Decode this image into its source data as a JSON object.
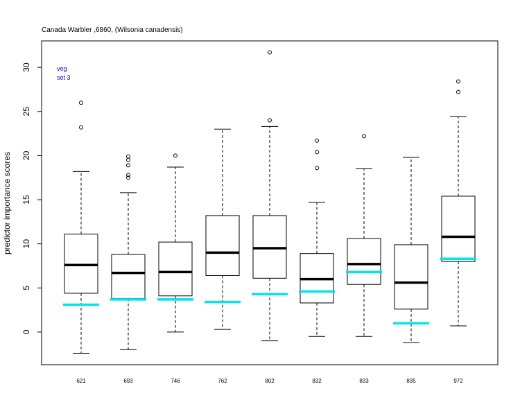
{
  "chart_data": {
    "type": "box",
    "title": "Canada Warbler ,6860, (Wilsonia canadensis)",
    "ylabel": "predictor importance scores",
    "xlabel": "",
    "ylim": [
      -3.7,
      33
    ],
    "yticks": [
      0,
      5,
      10,
      15,
      20,
      25,
      30
    ],
    "grid": false,
    "annotations": [
      "veg",
      "set 3"
    ],
    "colors": {
      "box": "#000000",
      "median": "#000000",
      "reference": "#00e5ee",
      "annotation": "#0000ff",
      "axis": "#000000"
    },
    "categories": [
      "621",
      "693",
      "746",
      "762",
      "802",
      "832",
      "833",
      "835",
      "972"
    ],
    "boxes": [
      {
        "whisker_low": -2.4,
        "q1": 4.4,
        "median": 7.6,
        "q3": 11.1,
        "whisker_high": 18.2,
        "outliers": [
          23.2,
          26.0
        ],
        "reference": 3.1
      },
      {
        "whisker_low": -2.0,
        "q1": 3.8,
        "median": 6.7,
        "q3": 8.8,
        "whisker_high": 15.8,
        "outliers": [
          17.5,
          17.8,
          18.9,
          19.5,
          19.9
        ],
        "reference": 3.7
      },
      {
        "whisker_low": 0.0,
        "q1": 4.1,
        "median": 6.8,
        "q3": 10.2,
        "whisker_high": 18.7,
        "outliers": [
          20.0
        ],
        "reference": 3.7
      },
      {
        "whisker_low": 0.3,
        "q1": 6.4,
        "median": 9.0,
        "q3": 13.2,
        "whisker_high": 23.0,
        "outliers": [],
        "reference": 3.4
      },
      {
        "whisker_low": -1.0,
        "q1": 6.1,
        "median": 9.5,
        "q3": 13.2,
        "whisker_high": 23.3,
        "outliers": [
          24.0,
          31.7
        ],
        "reference": 4.3
      },
      {
        "whisker_low": -0.5,
        "q1": 3.3,
        "median": 6.0,
        "q3": 8.9,
        "whisker_high": 14.7,
        "outliers": [
          18.6,
          20.4,
          21.7
        ],
        "reference": 4.6
      },
      {
        "whisker_low": -0.5,
        "q1": 5.4,
        "median": 7.7,
        "q3": 10.6,
        "whisker_high": 18.5,
        "outliers": [
          22.2
        ],
        "reference": 6.8
      },
      {
        "whisker_low": -1.2,
        "q1": 2.6,
        "median": 5.6,
        "q3": 9.9,
        "whisker_high": 19.8,
        "outliers": [],
        "reference": 1.0
      },
      {
        "whisker_low": 0.7,
        "q1": 8.0,
        "median": 10.8,
        "q3": 15.4,
        "whisker_high": 24.4,
        "outliers": [
          27.2,
          28.4
        ],
        "reference": 8.3
      }
    ]
  }
}
